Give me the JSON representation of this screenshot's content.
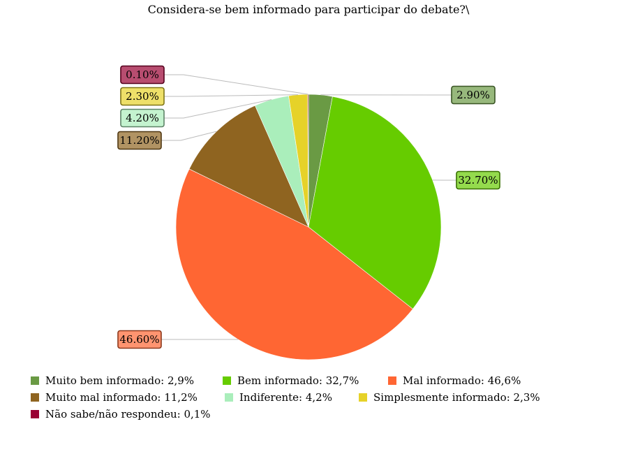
{
  "chart_data": {
    "type": "pie",
    "title": "Considera-se bem informado para participar do debate?\\",
    "slices": [
      {
        "label": "Muito bem informado",
        "value": 2.9,
        "data_label": "2.90%",
        "legend": "Muito bem informado: 2,9%",
        "color": "#6a9a44"
      },
      {
        "label": "Bem informado",
        "value": 32.7,
        "data_label": "32.70%",
        "legend": "Bem informado: 32,7%",
        "color": "#66cc00"
      },
      {
        "label": "Mal informado",
        "value": 46.6,
        "data_label": "46.60%",
        "legend": "Mal informado: 46,6%",
        "color": "#ff6633"
      },
      {
        "label": "Muito mal informado",
        "value": 11.2,
        "data_label": "11.20%",
        "legend": "Muito mal informado: 11,2%",
        "color": "#8f6420"
      },
      {
        "label": "Indiferente",
        "value": 4.2,
        "data_label": "4.20%",
        "legend": "Indiferente: 4,2%",
        "color": "#aaeebb"
      },
      {
        "label": "Simplesmente informado",
        "value": 2.3,
        "data_label": "2.30%",
        "legend": "Simplesmente informado: 2,3%",
        "color": "#e6d229"
      },
      {
        "label": "Não sabe/não respondeu",
        "value": 0.1,
        "data_label": "0.10%",
        "legend": "Não sabe/não respondeu: 0,1%",
        "color": "#990033"
      }
    ]
  }
}
